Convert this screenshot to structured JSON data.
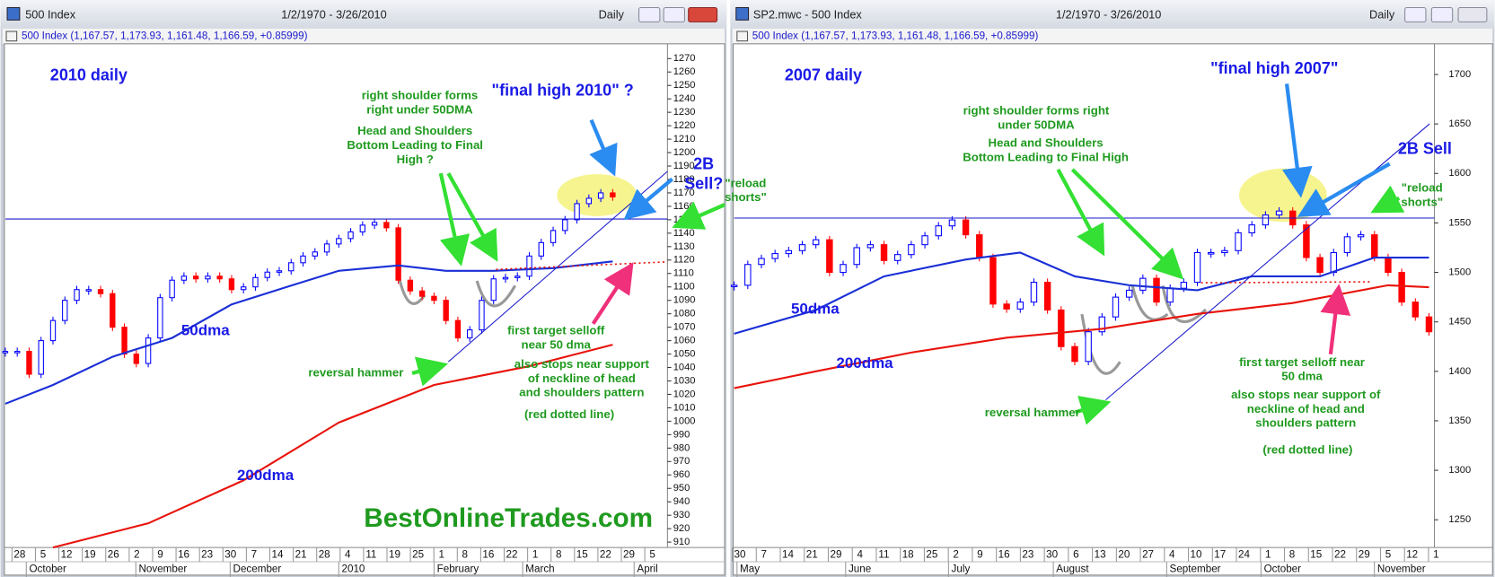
{
  "chart_data": [
    {
      "type": "candlestick",
      "window_title": "500 Index",
      "date_range": "1/2/1970 - 3/26/2010",
      "interval": "Daily",
      "info": "500 Index (1,167.57, 1,173.93, 1,161.48, 1,166.59, +0.85999)",
      "ylim": [
        906,
        1281
      ],
      "yticks": [
        910,
        920,
        930,
        940,
        950,
        960,
        970,
        980,
        990,
        1000,
        1010,
        1020,
        1030,
        1040,
        1050,
        1060,
        1070,
        1080,
        1090,
        1100,
        1110,
        1120,
        1130,
        1140,
        1150,
        1160,
        1170,
        1180,
        1190,
        1200,
        1210,
        1220,
        1230,
        1240,
        1250,
        1260,
        1270
      ],
      "x_labels": [
        "28",
        "5",
        "12",
        "19",
        "26",
        "2",
        "9",
        "16",
        "23",
        "30",
        "7",
        "14",
        "21",
        "28",
        "4",
        "11",
        "19",
        "25",
        "1",
        "8",
        "16",
        "22",
        "1",
        "8",
        "15",
        "22",
        "29",
        "5"
      ],
      "months": [
        "October",
        "November",
        "December",
        "2010",
        "February",
        "March",
        "April"
      ],
      "series": [
        {
          "color": "#0000ff",
          "down_color": "#ff0000",
          "values": [
            1052,
            1052,
            1035,
            1060,
            1075,
            1090,
            1098,
            1098,
            1095,
            1070,
            1050,
            1043,
            1062,
            1092,
            1105,
            1108,
            1106,
            1108,
            1106,
            1098,
            1100,
            1107,
            1111,
            1112,
            1118,
            1123,
            1126,
            1132,
            1136,
            1141,
            1146,
            1148,
            1144,
            1105,
            1097,
            1093,
            1090,
            1075,
            1062,
            1068,
            1090,
            1106,
            1107,
            1108,
            1123,
            1133,
            1142,
            1150,
            1162,
            1166,
            1170,
            1167
          ]
        },
        {
          "name": "50dma",
          "color": "#1a2fd6",
          "x": [
            0,
            4,
            9,
            14,
            19,
            24,
            28,
            33,
            37,
            41,
            46,
            51
          ],
          "values": [
            1013,
            1027,
            1048,
            1062,
            1087,
            1101,
            1112,
            1116,
            1112,
            1112,
            1114,
            1119
          ]
        },
        {
          "name": "200dma",
          "color": "#e8130b",
          "x": [
            4,
            12,
            20,
            28,
            36,
            44,
            51
          ],
          "values": [
            906,
            924,
            956,
            999,
            1027,
            1041,
            1057
          ]
        }
      ],
      "annotations": [
        [
          "2010 daily"
        ],
        [
          "right shoulder forms",
          "right under 50DMA"
        ],
        [
          "Head and Shoulders",
          "Bottom Leading to Final",
          "High ?"
        ],
        [
          "\"final high 2010\" ?"
        ],
        [
          "2B",
          "Sell?"
        ],
        [
          "\"reload",
          "shorts\""
        ],
        [
          "reversal hammer"
        ],
        [
          "first target selloff",
          "near 50 dma"
        ],
        [
          "also stops near support",
          "of neckline of head",
          "and shoulders pattern"
        ],
        [
          "(red dotted line)"
        ]
      ],
      "watermark": "BestOnlineTrades.com"
    },
    {
      "type": "candlestick",
      "window_title": "SP2.mwc - 500 Index",
      "date_range": "1/2/1970 - 3/26/2010",
      "interval": "Daily",
      "info": "500 Index (1,167.57, 1,173.93, 1,161.48, 1,166.59, +0.85999)",
      "ylim": [
        1222,
        1731
      ],
      "yticks": [
        1250,
        1300,
        1350,
        1400,
        1450,
        1500,
        1550,
        1600,
        1650,
        1700
      ],
      "x_labels": [
        "30",
        "7",
        "14",
        "21",
        "29",
        "4",
        "11",
        "18",
        "25",
        "2",
        "9",
        "16",
        "23",
        "30",
        "6",
        "13",
        "20",
        "27",
        "4",
        "10",
        "17",
        "24",
        "1",
        "8",
        "15",
        "22",
        "29",
        "5",
        "12",
        "1"
      ],
      "months": [
        "May",
        "June",
        "July",
        "August",
        "September",
        "October",
        "November"
      ],
      "series": [
        {
          "color": "#0000ff",
          "down_color": "#ff0000",
          "values": [
            1487,
            1508,
            1514,
            1519,
            1522,
            1528,
            1533,
            1500,
            1508,
            1525,
            1528,
            1512,
            1518,
            1528,
            1537,
            1547,
            1553,
            1538,
            1515,
            1468,
            1463,
            1470,
            1490,
            1462,
            1425,
            1410,
            1440,
            1455,
            1475,
            1482,
            1494,
            1470,
            1484,
            1490,
            1520,
            1520,
            1522,
            1540,
            1548,
            1558,
            1562,
            1548,
            1515,
            1500,
            1520,
            1536,
            1538,
            1515,
            1500,
            1470,
            1455,
            1440
          ]
        },
        {
          "name": "50dma",
          "color": "#1a2fd6",
          "x": [
            0,
            6,
            11,
            17,
            21,
            25,
            29,
            34,
            38,
            43,
            47,
            51
          ],
          "values": [
            1438,
            1462,
            1496,
            1513,
            1520,
            1496,
            1487,
            1482,
            1496,
            1496,
            1515,
            1515
          ]
        },
        {
          "name": "200dma",
          "color": "#e8130b",
          "x": [
            0,
            6,
            13,
            20,
            27,
            34,
            41,
            48,
            51
          ],
          "values": [
            1383,
            1400,
            1419,
            1434,
            1443,
            1458,
            1469,
            1487,
            1485
          ]
        }
      ],
      "annotations": [
        [
          "2007 daily"
        ],
        [
          "right shoulder forms right",
          "under 50DMA"
        ],
        [
          "Head and Shoulders",
          "Bottom Leading to Final High"
        ],
        [
          "\"final high 2007\""
        ],
        [
          "2B Sell"
        ],
        [
          "\"reload",
          "shorts\""
        ],
        [
          "reversal hammer"
        ],
        [
          "first target selloff near",
          "50 dma"
        ],
        [
          "also stops near support of",
          "neckline of head and",
          "shoulders pattern"
        ],
        [
          "(red dotted line)"
        ]
      ]
    }
  ]
}
